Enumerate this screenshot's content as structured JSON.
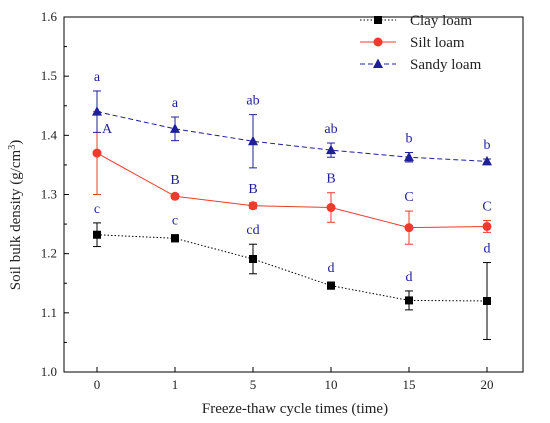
{
  "chart_data": {
    "type": "line",
    "title": "",
    "xlabel": "Freeze-thaw cycle times (time)",
    "ylabel_main": "Soil bulk density (g/cm",
    "ylabel_sup": "3",
    "ylabel_close": ")",
    "categories": [
      "0",
      "1",
      "5",
      "10",
      "15",
      "20"
    ],
    "ylim": [
      1.0,
      1.6
    ],
    "yticks": [
      "1.0",
      "1.1",
      "1.2",
      "1.3",
      "1.4",
      "1.5",
      "1.6"
    ],
    "grid": false,
    "legend_position": "top-right",
    "series": [
      {
        "name": "Clay loam",
        "color": "#000000",
        "marker": "square",
        "line_style": "dotted",
        "values": [
          1.232,
          1.226,
          1.191,
          1.146,
          1.121,
          1.12
        ],
        "errors": [
          0.02,
          0.006,
          0.025,
          0.006,
          0.016,
          0.065
        ],
        "letters": [
          "c",
          "c",
          "cd",
          "d",
          "d",
          "d"
        ]
      },
      {
        "name": "Silt loam",
        "color": "#ef3b2c",
        "marker": "circle",
        "line_style": "solid",
        "values": [
          1.37,
          1.297,
          1.281,
          1.278,
          1.244,
          1.246
        ],
        "errors": [
          0.07,
          0.004,
          0.005,
          0.025,
          0.028,
          0.01
        ],
        "letters": [
          "A",
          "B",
          "B",
          "B",
          "C",
          "C"
        ]
      },
      {
        "name": "Sandy loam",
        "color": "#1f1f9a",
        "marker": "triangle",
        "line_style": "dashed",
        "values": [
          1.44,
          1.411,
          1.39,
          1.375,
          1.363,
          1.356
        ],
        "errors": [
          0.035,
          0.02,
          0.045,
          0.012,
          0.008,
          0.004
        ],
        "letters": [
          "a",
          "a",
          "ab",
          "ab",
          "b",
          "b"
        ]
      }
    ]
  }
}
